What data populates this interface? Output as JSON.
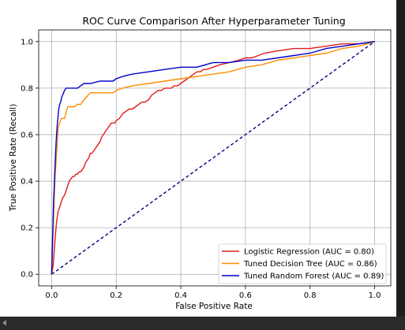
{
  "chart_data": {
    "type": "line",
    "title": "ROC Curve Comparison After Hyperparameter Tuning",
    "xlabel": "False Positive Rate",
    "ylabel": "True Positive Rate (Recall)",
    "xlim": [
      -0.04,
      1.05
    ],
    "ylim": [
      -0.05,
      1.05
    ],
    "xticks": [
      "0.0",
      "0.2",
      "0.4",
      "0.6",
      "0.8",
      "1.0"
    ],
    "yticks": [
      "0.0",
      "0.2",
      "0.4",
      "0.6",
      "0.8",
      "1.0"
    ],
    "grid": true,
    "legend_position": "lower-right",
    "series": [
      {
        "name": "Logistic Regression (AUC = 0.80)",
        "color": "#e41a1c",
        "x": [
          0.0,
          0.005,
          0.01,
          0.015,
          0.02,
          0.025,
          0.03,
          0.035,
          0.04,
          0.045,
          0.05,
          0.055,
          0.06,
          0.065,
          0.07,
          0.075,
          0.08,
          0.085,
          0.09,
          0.095,
          0.1,
          0.105,
          0.11,
          0.115,
          0.12,
          0.125,
          0.13,
          0.135,
          0.14,
          0.145,
          0.15,
          0.155,
          0.16,
          0.165,
          0.17,
          0.175,
          0.18,
          0.185,
          0.19,
          0.195,
          0.2,
          0.21,
          0.22,
          0.23,
          0.24,
          0.25,
          0.26,
          0.27,
          0.28,
          0.29,
          0.3,
          0.31,
          0.32,
          0.33,
          0.34,
          0.35,
          0.36,
          0.37,
          0.38,
          0.39,
          0.4,
          0.41,
          0.42,
          0.43,
          0.44,
          0.45,
          0.46,
          0.47,
          0.48,
          0.5,
          0.52,
          0.55,
          0.58,
          0.6,
          0.62,
          0.64,
          0.66,
          0.7,
          0.75,
          0.8,
          0.85,
          0.9,
          0.95,
          1.0
        ],
        "y": [
          0.0,
          0.04,
          0.14,
          0.22,
          0.27,
          0.29,
          0.31,
          0.33,
          0.34,
          0.36,
          0.38,
          0.4,
          0.41,
          0.42,
          0.42,
          0.43,
          0.43,
          0.44,
          0.44,
          0.45,
          0.46,
          0.48,
          0.49,
          0.5,
          0.52,
          0.52,
          0.53,
          0.54,
          0.55,
          0.56,
          0.57,
          0.59,
          0.6,
          0.61,
          0.62,
          0.63,
          0.64,
          0.65,
          0.65,
          0.65,
          0.66,
          0.67,
          0.69,
          0.7,
          0.71,
          0.71,
          0.72,
          0.73,
          0.74,
          0.74,
          0.75,
          0.77,
          0.78,
          0.79,
          0.79,
          0.8,
          0.8,
          0.8,
          0.81,
          0.81,
          0.82,
          0.83,
          0.84,
          0.85,
          0.86,
          0.87,
          0.87,
          0.88,
          0.88,
          0.89,
          0.9,
          0.91,
          0.92,
          0.93,
          0.93,
          0.94,
          0.95,
          0.96,
          0.97,
          0.97,
          0.98,
          0.99,
          0.99,
          1.0
        ]
      },
      {
        "name": "Tuned Decision Tree (AUC = 0.86)",
        "color": "#ff8c00",
        "x": [
          0.0,
          0.01,
          0.02,
          0.03,
          0.04,
          0.05,
          0.06,
          0.07,
          0.08,
          0.09,
          0.1,
          0.12,
          0.15,
          0.19,
          0.2,
          0.22,
          0.25,
          0.3,
          0.35,
          0.4,
          0.45,
          0.5,
          0.55,
          0.6,
          0.65,
          0.7,
          0.75,
          0.8,
          0.85,
          0.9,
          0.95,
          1.0
        ],
        "y": [
          0.0,
          0.4,
          0.63,
          0.67,
          0.67,
          0.72,
          0.72,
          0.72,
          0.73,
          0.73,
          0.75,
          0.78,
          0.78,
          0.78,
          0.79,
          0.8,
          0.81,
          0.82,
          0.83,
          0.84,
          0.85,
          0.86,
          0.87,
          0.89,
          0.9,
          0.92,
          0.93,
          0.94,
          0.95,
          0.97,
          0.98,
          1.0
        ]
      },
      {
        "name": "Tuned Random Forest (AUC = 0.89)",
        "color": "#0000cc",
        "x": [
          0.0,
          0.002,
          0.004,
          0.006,
          0.008,
          0.01,
          0.012,
          0.014,
          0.016,
          0.018,
          0.02,
          0.022,
          0.025,
          0.028,
          0.031,
          0.034,
          0.037,
          0.04,
          0.045,
          0.05,
          0.06,
          0.08,
          0.09,
          0.1,
          0.12,
          0.15,
          0.19,
          0.2,
          0.22,
          0.25,
          0.3,
          0.35,
          0.4,
          0.45,
          0.5,
          0.55,
          0.6,
          0.65,
          0.7,
          0.75,
          0.8,
          0.85,
          0.9,
          0.95,
          1.0
        ],
        "y": [
          0.0,
          0.1,
          0.2,
          0.31,
          0.37,
          0.45,
          0.51,
          0.57,
          0.61,
          0.65,
          0.68,
          0.71,
          0.73,
          0.74,
          0.76,
          0.77,
          0.78,
          0.79,
          0.8,
          0.8,
          0.8,
          0.8,
          0.81,
          0.82,
          0.82,
          0.83,
          0.83,
          0.84,
          0.85,
          0.86,
          0.87,
          0.88,
          0.89,
          0.89,
          0.91,
          0.91,
          0.92,
          0.92,
          0.93,
          0.94,
          0.95,
          0.97,
          0.98,
          0.99,
          1.0
        ]
      },
      {
        "name": "",
        "color": "#000080",
        "dashed": true,
        "x": [
          0.0,
          1.0
        ],
        "y": [
          0.0,
          1.0
        ]
      }
    ]
  }
}
